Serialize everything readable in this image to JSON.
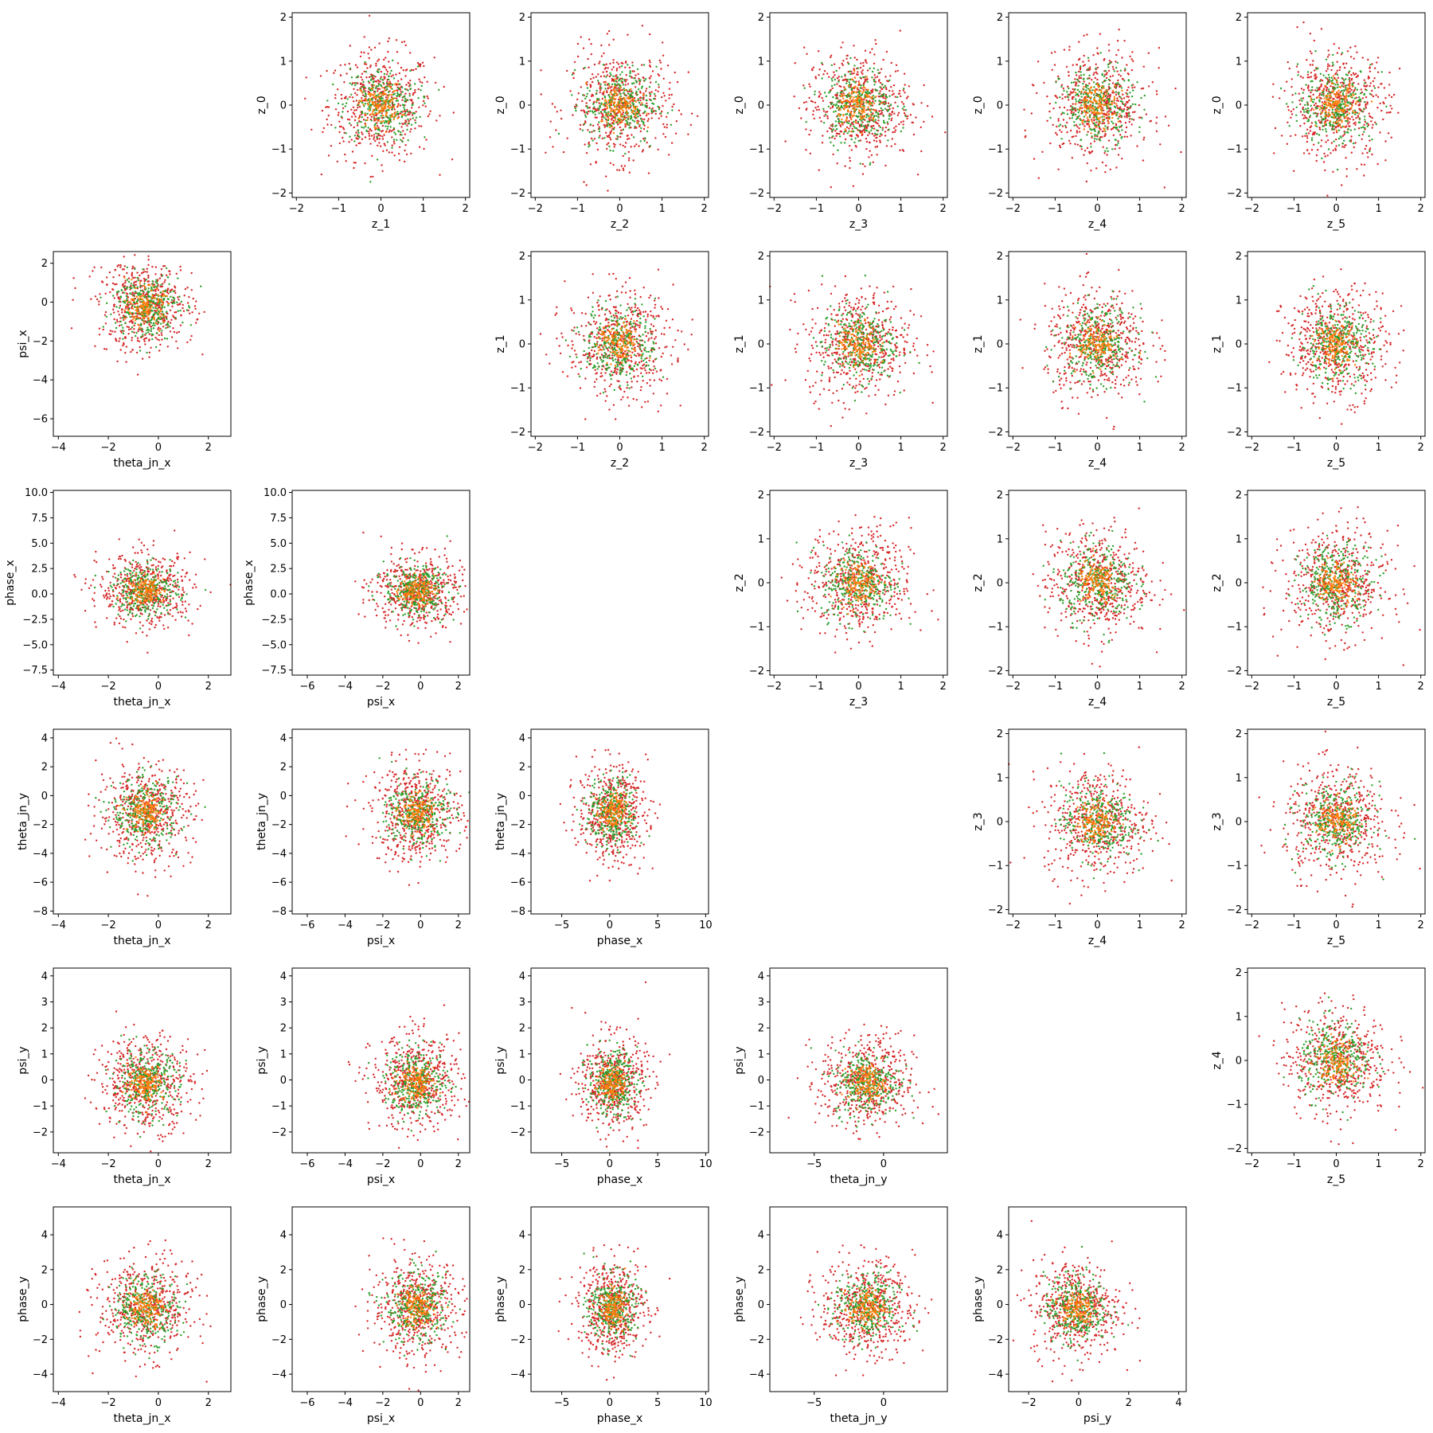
{
  "colors": {
    "outer": "#d62728",
    "middle": "#2ca02c",
    "inner": "#ff7f0e"
  },
  "chart_data": [
    {
      "type": "scatter",
      "xlabel": "z_1",
      "ylabel": "z_0",
      "xlim": [
        -2.1,
        2.1
      ],
      "ylim": [
        -2.1,
        2.1
      ],
      "xticks": [
        -2,
        -1,
        0,
        1,
        2
      ],
      "yticks": [
        -2,
        -1,
        0,
        1,
        2
      ],
      "x_center": 0,
      "y_center": 0,
      "x_spread": 0.62,
      "y_spread": 0.62
    },
    {
      "type": "scatter",
      "xlabel": "z_2",
      "ylabel": "z_0",
      "xlim": [
        -2.1,
        2.1
      ],
      "ylim": [
        -2.1,
        2.1
      ],
      "xticks": [
        -2,
        -1,
        0,
        1,
        2
      ],
      "yticks": [
        -2,
        -1,
        0,
        1,
        2
      ],
      "x_center": 0,
      "y_center": 0,
      "x_spread": 0.62,
      "y_spread": 0.62
    },
    {
      "type": "scatter",
      "xlabel": "z_3",
      "ylabel": "z_0",
      "xlim": [
        -2.1,
        2.1
      ],
      "ylim": [
        -2.1,
        2.1
      ],
      "xticks": [
        -2,
        -1,
        0,
        1,
        2
      ],
      "yticks": [
        -2,
        -1,
        0,
        1,
        2
      ],
      "x_center": 0,
      "y_center": 0,
      "x_spread": 0.62,
      "y_spread": 0.62
    },
    {
      "type": "scatter",
      "xlabel": "z_4",
      "ylabel": "z_0",
      "xlim": [
        -2.1,
        2.1
      ],
      "ylim": [
        -2.1,
        2.1
      ],
      "xticks": [
        -2,
        -1,
        0,
        1,
        2
      ],
      "yticks": [
        -2,
        -1,
        0,
        1,
        2
      ],
      "x_center": 0,
      "y_center": 0,
      "x_spread": 0.62,
      "y_spread": 0.62
    },
    {
      "type": "scatter",
      "xlabel": "z_5",
      "ylabel": "z_0",
      "xlim": [
        -2.1,
        2.1
      ],
      "ylim": [
        -2.1,
        2.1
      ],
      "xticks": [
        -2,
        -1,
        0,
        1,
        2
      ],
      "yticks": [
        -2,
        -1,
        0,
        1,
        2
      ],
      "x_center": 0,
      "y_center": 0,
      "x_spread": 0.62,
      "y_spread": 0.62
    },
    {
      "type": "scatter",
      "xlabel": "theta_jn_x",
      "ylabel": "psi_x",
      "xlim": [
        -4.2,
        2.9
      ],
      "ylim": [
        -6.9,
        2.6
      ],
      "xticks": [
        -4,
        -2,
        0,
        2
      ],
      "yticks": [
        -6,
        -4,
        -2,
        0,
        2
      ],
      "x_center": -0.5,
      "y_center": -0.2,
      "x_spread": 0.95,
      "y_spread": 1.2
    },
    {
      "type": "scatter",
      "xlabel": "z_2",
      "ylabel": "z_1",
      "xlim": [
        -2.1,
        2.1
      ],
      "ylim": [
        -2.1,
        2.1
      ],
      "xticks": [
        -2,
        -1,
        0,
        1,
        2
      ],
      "yticks": [
        -2,
        -1,
        0,
        1,
        2
      ],
      "x_center": 0,
      "y_center": 0,
      "x_spread": 0.62,
      "y_spread": 0.62
    },
    {
      "type": "scatter",
      "xlabel": "z_3",
      "ylabel": "z_1",
      "xlim": [
        -2.1,
        2.1
      ],
      "ylim": [
        -2.1,
        2.1
      ],
      "xticks": [
        -2,
        -1,
        0,
        1,
        2
      ],
      "yticks": [
        -2,
        -1,
        0,
        1,
        2
      ],
      "x_center": 0,
      "y_center": 0,
      "x_spread": 0.62,
      "y_spread": 0.62
    },
    {
      "type": "scatter",
      "xlabel": "z_4",
      "ylabel": "z_1",
      "xlim": [
        -2.1,
        2.1
      ],
      "ylim": [
        -2.1,
        2.1
      ],
      "xticks": [
        -2,
        -1,
        0,
        1,
        2
      ],
      "yticks": [
        -2,
        -1,
        0,
        1,
        2
      ],
      "x_center": 0,
      "y_center": 0,
      "x_spread": 0.62,
      "y_spread": 0.62
    },
    {
      "type": "scatter",
      "xlabel": "z_5",
      "ylabel": "z_1",
      "xlim": [
        -2.1,
        2.1
      ],
      "ylim": [
        -2.1,
        2.1
      ],
      "xticks": [
        -2,
        -1,
        0,
        1,
        2
      ],
      "yticks": [
        -2,
        -1,
        0,
        1,
        2
      ],
      "x_center": 0,
      "y_center": 0,
      "x_spread": 0.62,
      "y_spread": 0.62
    },
    {
      "type": "scatter",
      "xlabel": "theta_jn_x",
      "ylabel": "phase_x",
      "xlim": [
        -4.2,
        2.9
      ],
      "ylim": [
        -8,
        10.2
      ],
      "xticks": [
        -4,
        -2,
        0,
        2
      ],
      "yticks": [
        -7.5,
        -5.0,
        -2.5,
        0.0,
        2.5,
        5.0,
        7.5,
        10.0
      ],
      "x_center": -0.5,
      "y_center": 0.3,
      "x_spread": 0.95,
      "y_spread": 1.8
    },
    {
      "type": "scatter",
      "xlabel": "psi_x",
      "ylabel": "phase_x",
      "xlim": [
        -6.8,
        2.6
      ],
      "ylim": [
        -8,
        10.2
      ],
      "xticks": [
        -6,
        -4,
        -2,
        0,
        2
      ],
      "yticks": [
        -7.5,
        -5.0,
        -2.5,
        0.0,
        2.5,
        5.0,
        7.5,
        10.0
      ],
      "x_center": -0.2,
      "y_center": 0.3,
      "x_spread": 1.2,
      "y_spread": 1.8
    },
    {
      "type": "scatter",
      "xlabel": "z_3",
      "ylabel": "z_2",
      "xlim": [
        -2.1,
        2.1
      ],
      "ylim": [
        -2.1,
        2.1
      ],
      "xticks": [
        -2,
        -1,
        0,
        1,
        2
      ],
      "yticks": [
        -2,
        -1,
        0,
        1,
        2
      ],
      "x_center": 0,
      "y_center": 0,
      "x_spread": 0.62,
      "y_spread": 0.62
    },
    {
      "type": "scatter",
      "xlabel": "z_4",
      "ylabel": "z_2",
      "xlim": [
        -2.1,
        2.1
      ],
      "ylim": [
        -2.1,
        2.1
      ],
      "xticks": [
        -2,
        -1,
        0,
        1,
        2
      ],
      "yticks": [
        -2,
        -1,
        0,
        1,
        2
      ],
      "x_center": 0,
      "y_center": 0,
      "x_spread": 0.62,
      "y_spread": 0.62
    },
    {
      "type": "scatter",
      "xlabel": "z_5",
      "ylabel": "z_2",
      "xlim": [
        -2.1,
        2.1
      ],
      "ylim": [
        -2.1,
        2.1
      ],
      "xticks": [
        -2,
        -1,
        0,
        1,
        2
      ],
      "yticks": [
        -2,
        -1,
        0,
        1,
        2
      ],
      "x_center": 0,
      "y_center": 0,
      "x_spread": 0.62,
      "y_spread": 0.62
    },
    {
      "type": "scatter",
      "xlabel": "theta_jn_x",
      "ylabel": "theta_jn_y",
      "xlim": [
        -4.2,
        2.9
      ],
      "ylim": [
        -8.2,
        4.6
      ],
      "xticks": [
        -4,
        -2,
        0,
        2
      ],
      "yticks": [
        -8,
        -6,
        -4,
        -2,
        0,
        2,
        4
      ],
      "x_center": -0.5,
      "y_center": -1.2,
      "x_spread": 0.95,
      "y_spread": 1.7
    },
    {
      "type": "scatter",
      "xlabel": "psi_x",
      "ylabel": "theta_jn_y",
      "xlim": [
        -6.8,
        2.6
      ],
      "ylim": [
        -8.2,
        4.6
      ],
      "xticks": [
        -6,
        -4,
        -2,
        0,
        2
      ],
      "yticks": [
        -8,
        -6,
        -4,
        -2,
        0,
        2,
        4
      ],
      "x_center": -0.2,
      "y_center": -1.2,
      "x_spread": 1.2,
      "y_spread": 1.7
    },
    {
      "type": "scatter",
      "xlabel": "phase_x",
      "ylabel": "theta_jn_y",
      "xlim": [
        -8.2,
        10.3
      ],
      "ylim": [
        -8.2,
        4.6
      ],
      "xticks": [
        -5,
        0,
        5,
        10
      ],
      "yticks": [
        -8,
        -6,
        -4,
        -2,
        0,
        2,
        4
      ],
      "x_center": 0.3,
      "y_center": -1.2,
      "x_spread": 1.8,
      "y_spread": 1.7
    },
    {
      "type": "scatter",
      "xlabel": "z_4",
      "ylabel": "z_3",
      "xlim": [
        -2.1,
        2.1
      ],
      "ylim": [
        -2.1,
        2.1
      ],
      "xticks": [
        -2,
        -1,
        0,
        1,
        2
      ],
      "yticks": [
        -2,
        -1,
        0,
        1,
        2
      ],
      "x_center": 0,
      "y_center": 0,
      "x_spread": 0.62,
      "y_spread": 0.62
    },
    {
      "type": "scatter",
      "xlabel": "z_5",
      "ylabel": "z_3",
      "xlim": [
        -2.1,
        2.1
      ],
      "ylim": [
        -2.1,
        2.1
      ],
      "xticks": [
        -2,
        -1,
        0,
        1,
        2
      ],
      "yticks": [
        -2,
        -1,
        0,
        1,
        2
      ],
      "x_center": 0,
      "y_center": 0,
      "x_spread": 0.62,
      "y_spread": 0.62
    },
    {
      "type": "scatter",
      "xlabel": "theta_jn_x",
      "ylabel": "psi_y",
      "xlim": [
        -4.2,
        2.9
      ],
      "ylim": [
        -2.8,
        4.3
      ],
      "xticks": [
        -4,
        -2,
        0,
        2
      ],
      "yticks": [
        -2,
        -1,
        0,
        1,
        2,
        3,
        4
      ],
      "x_center": -0.5,
      "y_center": -0.1,
      "x_spread": 0.95,
      "y_spread": 0.9
    },
    {
      "type": "scatter",
      "xlabel": "psi_x",
      "ylabel": "psi_y",
      "xlim": [
        -6.8,
        2.6
      ],
      "ylim": [
        -2.8,
        4.3
      ],
      "xticks": [
        -6,
        -4,
        -2,
        0,
        2
      ],
      "yticks": [
        -2,
        -1,
        0,
        1,
        2,
        3,
        4
      ],
      "x_center": -0.2,
      "y_center": -0.1,
      "x_spread": 1.2,
      "y_spread": 0.9
    },
    {
      "type": "scatter",
      "xlabel": "phase_x",
      "ylabel": "psi_y",
      "xlim": [
        -8.2,
        10.3
      ],
      "ylim": [
        -2.8,
        4.3
      ],
      "xticks": [
        -5,
        0,
        5,
        10
      ],
      "yticks": [
        -2,
        -1,
        0,
        1,
        2,
        3,
        4
      ],
      "x_center": 0.3,
      "y_center": -0.1,
      "x_spread": 1.8,
      "y_spread": 0.9
    },
    {
      "type": "scatter",
      "xlabel": "theta_jn_y",
      "ylabel": "psi_y",
      "xlim": [
        -8.2,
        4.6
      ],
      "ylim": [
        -2.8,
        4.3
      ],
      "xticks": [
        -5,
        0
      ],
      "yticks": [
        -2,
        -1,
        0,
        1,
        2,
        3,
        4
      ],
      "x_center": -1.2,
      "y_center": -0.1,
      "x_spread": 1.7,
      "y_spread": 0.9
    },
    {
      "type": "scatter",
      "xlabel": "z_5",
      "ylabel": "z_4",
      "xlim": [
        -2.1,
        2.1
      ],
      "ylim": [
        -2.1,
        2.1
      ],
      "xticks": [
        -2,
        -1,
        0,
        1,
        2
      ],
      "yticks": [
        -2,
        -1,
        0,
        1,
        2
      ],
      "x_center": 0,
      "y_center": 0,
      "x_spread": 0.62,
      "y_spread": 0.62
    },
    {
      "type": "scatter",
      "xlabel": "theta_jn_x",
      "ylabel": "phase_y",
      "xlim": [
        -4.2,
        2.9
      ],
      "ylim": [
        -5.0,
        5.6
      ],
      "xticks": [
        -4,
        -2,
        0,
        2
      ],
      "yticks": [
        -4,
        -2,
        0,
        2,
        4
      ],
      "x_center": -0.5,
      "y_center": -0.2,
      "x_spread": 0.95,
      "y_spread": 1.4
    },
    {
      "type": "scatter",
      "xlabel": "psi_x",
      "ylabel": "phase_y",
      "xlim": [
        -6.8,
        2.6
      ],
      "ylim": [
        -5.0,
        5.6
      ],
      "xticks": [
        -6,
        -4,
        -2,
        0,
        2
      ],
      "yticks": [
        -4,
        -2,
        0,
        2,
        4
      ],
      "x_center": -0.2,
      "y_center": -0.2,
      "x_spread": 1.2,
      "y_spread": 1.4
    },
    {
      "type": "scatter",
      "xlabel": "phase_x",
      "ylabel": "phase_y",
      "xlim": [
        -8.2,
        10.3
      ],
      "ylim": [
        -5.0,
        5.6
      ],
      "xticks": [
        -5,
        0,
        5,
        10
      ],
      "yticks": [
        -4,
        -2,
        0,
        2,
        4
      ],
      "x_center": 0.3,
      "y_center": -0.2,
      "x_spread": 1.8,
      "y_spread": 1.4
    },
    {
      "type": "scatter",
      "xlabel": "theta_jn_y",
      "ylabel": "phase_y",
      "xlim": [
        -8.2,
        4.6
      ],
      "ylim": [
        -5.0,
        5.6
      ],
      "xticks": [
        -5,
        0
      ],
      "yticks": [
        -4,
        -2,
        0,
        2,
        4
      ],
      "x_center": -1.2,
      "y_center": -0.2,
      "x_spread": 1.7,
      "y_spread": 1.4
    },
    {
      "type": "scatter",
      "xlabel": "psi_y",
      "ylabel": "phase_y",
      "xlim": [
        -2.8,
        4.3
      ],
      "ylim": [
        -5.0,
        5.6
      ],
      "xticks": [
        -2,
        0,
        2,
        4
      ],
      "yticks": [
        -4,
        -2,
        0,
        2,
        4
      ],
      "x_center": -0.1,
      "y_center": -0.2,
      "x_spread": 0.9,
      "y_spread": 1.4
    }
  ]
}
